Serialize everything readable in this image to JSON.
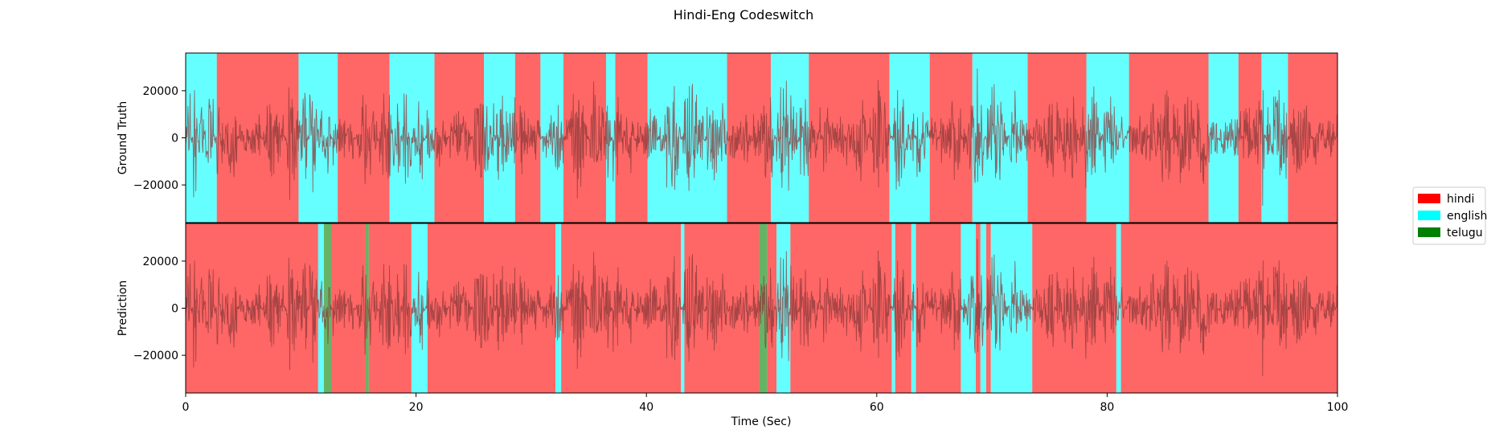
{
  "chart_data": {
    "type": "area",
    "title": "Hindi-Eng Codeswitch",
    "xlabel": "Time (Sec)",
    "xlim": [
      0,
      100
    ],
    "ylim": [
      -36000,
      36000
    ],
    "xticks": [
      0,
      20,
      40,
      60,
      80,
      100
    ],
    "yticks": [
      -20000,
      0,
      20000
    ],
    "legend_position": "right",
    "legend": [
      {
        "name": "hindi",
        "color": "#ff0000"
      },
      {
        "name": "english",
        "color": "#00ffff"
      },
      {
        "name": "telugu",
        "color": "#008000"
      }
    ],
    "waveform": {
      "color": "#8b3a3a",
      "amplitude_max": 31000
    },
    "panels": [
      {
        "ylabel": "Ground Truth",
        "segments": [
          {
            "start": 0.0,
            "end": 2.7,
            "label": "english"
          },
          {
            "start": 2.7,
            "end": 9.8,
            "label": "hindi"
          },
          {
            "start": 9.8,
            "end": 13.2,
            "label": "english"
          },
          {
            "start": 13.2,
            "end": 17.7,
            "label": "hindi"
          },
          {
            "start": 17.7,
            "end": 21.6,
            "label": "english"
          },
          {
            "start": 21.6,
            "end": 25.9,
            "label": "hindi"
          },
          {
            "start": 25.9,
            "end": 28.6,
            "label": "english"
          },
          {
            "start": 28.6,
            "end": 30.8,
            "label": "hindi"
          },
          {
            "start": 30.8,
            "end": 32.8,
            "label": "english"
          },
          {
            "start": 32.8,
            "end": 36.5,
            "label": "hindi"
          },
          {
            "start": 36.5,
            "end": 37.3,
            "label": "english"
          },
          {
            "start": 37.3,
            "end": 40.1,
            "label": "hindi"
          },
          {
            "start": 40.1,
            "end": 47.0,
            "label": "english"
          },
          {
            "start": 47.0,
            "end": 50.8,
            "label": "hindi"
          },
          {
            "start": 50.8,
            "end": 54.1,
            "label": "english"
          },
          {
            "start": 54.1,
            "end": 61.1,
            "label": "hindi"
          },
          {
            "start": 61.1,
            "end": 64.6,
            "label": "english"
          },
          {
            "start": 64.6,
            "end": 68.3,
            "label": "hindi"
          },
          {
            "start": 68.3,
            "end": 73.1,
            "label": "english"
          },
          {
            "start": 73.1,
            "end": 78.2,
            "label": "hindi"
          },
          {
            "start": 78.2,
            "end": 81.9,
            "label": "english"
          },
          {
            "start": 81.9,
            "end": 88.8,
            "label": "hindi"
          },
          {
            "start": 88.8,
            "end": 91.4,
            "label": "english"
          },
          {
            "start": 91.4,
            "end": 93.4,
            "label": "hindi"
          },
          {
            "start": 93.4,
            "end": 95.7,
            "label": "english"
          },
          {
            "start": 95.7,
            "end": 100.0,
            "label": "hindi"
          }
        ]
      },
      {
        "ylabel": "Prediction",
        "segments": [
          {
            "start": 0.0,
            "end": 11.5,
            "label": "hindi"
          },
          {
            "start": 11.5,
            "end": 12.0,
            "label": "english"
          },
          {
            "start": 12.0,
            "end": 12.7,
            "label": "telugu"
          },
          {
            "start": 12.7,
            "end": 15.6,
            "label": "hindi"
          },
          {
            "start": 15.6,
            "end": 15.9,
            "label": "telugu"
          },
          {
            "start": 15.9,
            "end": 19.6,
            "label": "hindi"
          },
          {
            "start": 19.6,
            "end": 21.0,
            "label": "english"
          },
          {
            "start": 21.0,
            "end": 32.1,
            "label": "hindi"
          },
          {
            "start": 32.1,
            "end": 32.6,
            "label": "english"
          },
          {
            "start": 32.6,
            "end": 43.0,
            "label": "hindi"
          },
          {
            "start": 43.0,
            "end": 43.3,
            "label": "english"
          },
          {
            "start": 43.3,
            "end": 49.8,
            "label": "hindi"
          },
          {
            "start": 49.8,
            "end": 50.5,
            "label": "telugu"
          },
          {
            "start": 50.5,
            "end": 51.3,
            "label": "hindi"
          },
          {
            "start": 51.3,
            "end": 52.5,
            "label": "english"
          },
          {
            "start": 52.5,
            "end": 61.3,
            "label": "hindi"
          },
          {
            "start": 61.3,
            "end": 61.6,
            "label": "english"
          },
          {
            "start": 61.6,
            "end": 63.0,
            "label": "hindi"
          },
          {
            "start": 63.0,
            "end": 63.4,
            "label": "english"
          },
          {
            "start": 63.4,
            "end": 67.3,
            "label": "hindi"
          },
          {
            "start": 67.3,
            "end": 68.6,
            "label": "english"
          },
          {
            "start": 68.6,
            "end": 69.0,
            "label": "hindi"
          },
          {
            "start": 69.0,
            "end": 69.5,
            "label": "english"
          },
          {
            "start": 69.5,
            "end": 69.9,
            "label": "hindi"
          },
          {
            "start": 69.9,
            "end": 73.5,
            "label": "english"
          },
          {
            "start": 73.5,
            "end": 80.8,
            "label": "hindi"
          },
          {
            "start": 80.8,
            "end": 81.2,
            "label": "english"
          },
          {
            "start": 81.2,
            "end": 100.0,
            "label": "hindi"
          }
        ]
      }
    ]
  }
}
